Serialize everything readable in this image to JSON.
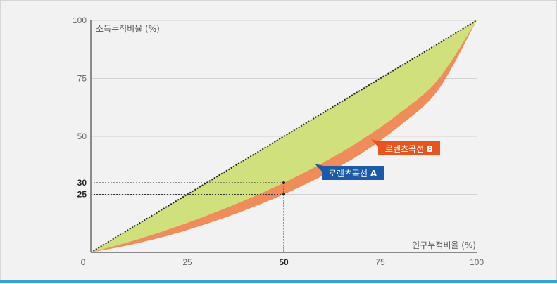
{
  "chart_data": {
    "type": "area",
    "xlabel": "인구누적비율 (%)",
    "ylabel": "소득누적비율 (%)",
    "xlim": [
      0,
      100
    ],
    "ylim": [
      0,
      100
    ],
    "x_ticks": [
      {
        "value": 0,
        "label": "0",
        "bold": false
      },
      {
        "value": 25,
        "label": "25",
        "bold": false
      },
      {
        "value": 50,
        "label": "50",
        "bold": true
      },
      {
        "value": 75,
        "label": "75",
        "bold": false
      },
      {
        "value": 100,
        "label": "100",
        "bold": false
      }
    ],
    "y_ticks": [
      {
        "value": 25,
        "label": "25",
        "bold": true
      },
      {
        "value": 30,
        "label": "30",
        "bold": true
      },
      {
        "value": 50,
        "label": "50",
        "bold": false
      },
      {
        "value": 75,
        "label": "75",
        "bold": false
      },
      {
        "value": 100,
        "label": "100",
        "bold": false
      }
    ],
    "gridlines_y": [
      25,
      50,
      75,
      100
    ],
    "series": [
      {
        "id": "equality",
        "style": "dotted",
        "color": "#222222",
        "points": [
          [
            0,
            0
          ],
          [
            100,
            100
          ]
        ]
      },
      {
        "id": "curve_a",
        "name": "로렌츠곡선 A",
        "color": "#cfe07d",
        "points": [
          [
            0,
            0
          ],
          [
            10,
            4.5
          ],
          [
            20,
            9.8
          ],
          [
            30,
            15.8
          ],
          [
            40,
            22.5
          ],
          [
            50,
            30
          ],
          [
            60,
            38.5
          ],
          [
            70,
            48.3
          ],
          [
            80,
            60
          ],
          [
            90,
            74.5
          ],
          [
            100,
            100
          ]
        ]
      },
      {
        "id": "curve_b",
        "name": "로렌츠곡선 B",
        "color": "#f08c5a",
        "points": [
          [
            0,
            0
          ],
          [
            10,
            3.2
          ],
          [
            20,
            7.2
          ],
          [
            30,
            12.3
          ],
          [
            40,
            18.2
          ],
          [
            50,
            25
          ],
          [
            60,
            33
          ],
          [
            70,
            42.5
          ],
          [
            80,
            54.5
          ],
          [
            90,
            70
          ],
          [
            100,
            100
          ]
        ]
      }
    ],
    "reference_points": [
      {
        "x": 50,
        "y": 30
      },
      {
        "x": 50,
        "y": 25
      }
    ],
    "labels": [
      {
        "series": "curve_b",
        "text": "로렌츠곡선 B",
        "bold_part": "B",
        "color": "#e8541e"
      },
      {
        "series": "curve_a",
        "text": "로렌츠곡선 A",
        "bold_part": "A",
        "color": "#1a5aa8"
      }
    ]
  }
}
